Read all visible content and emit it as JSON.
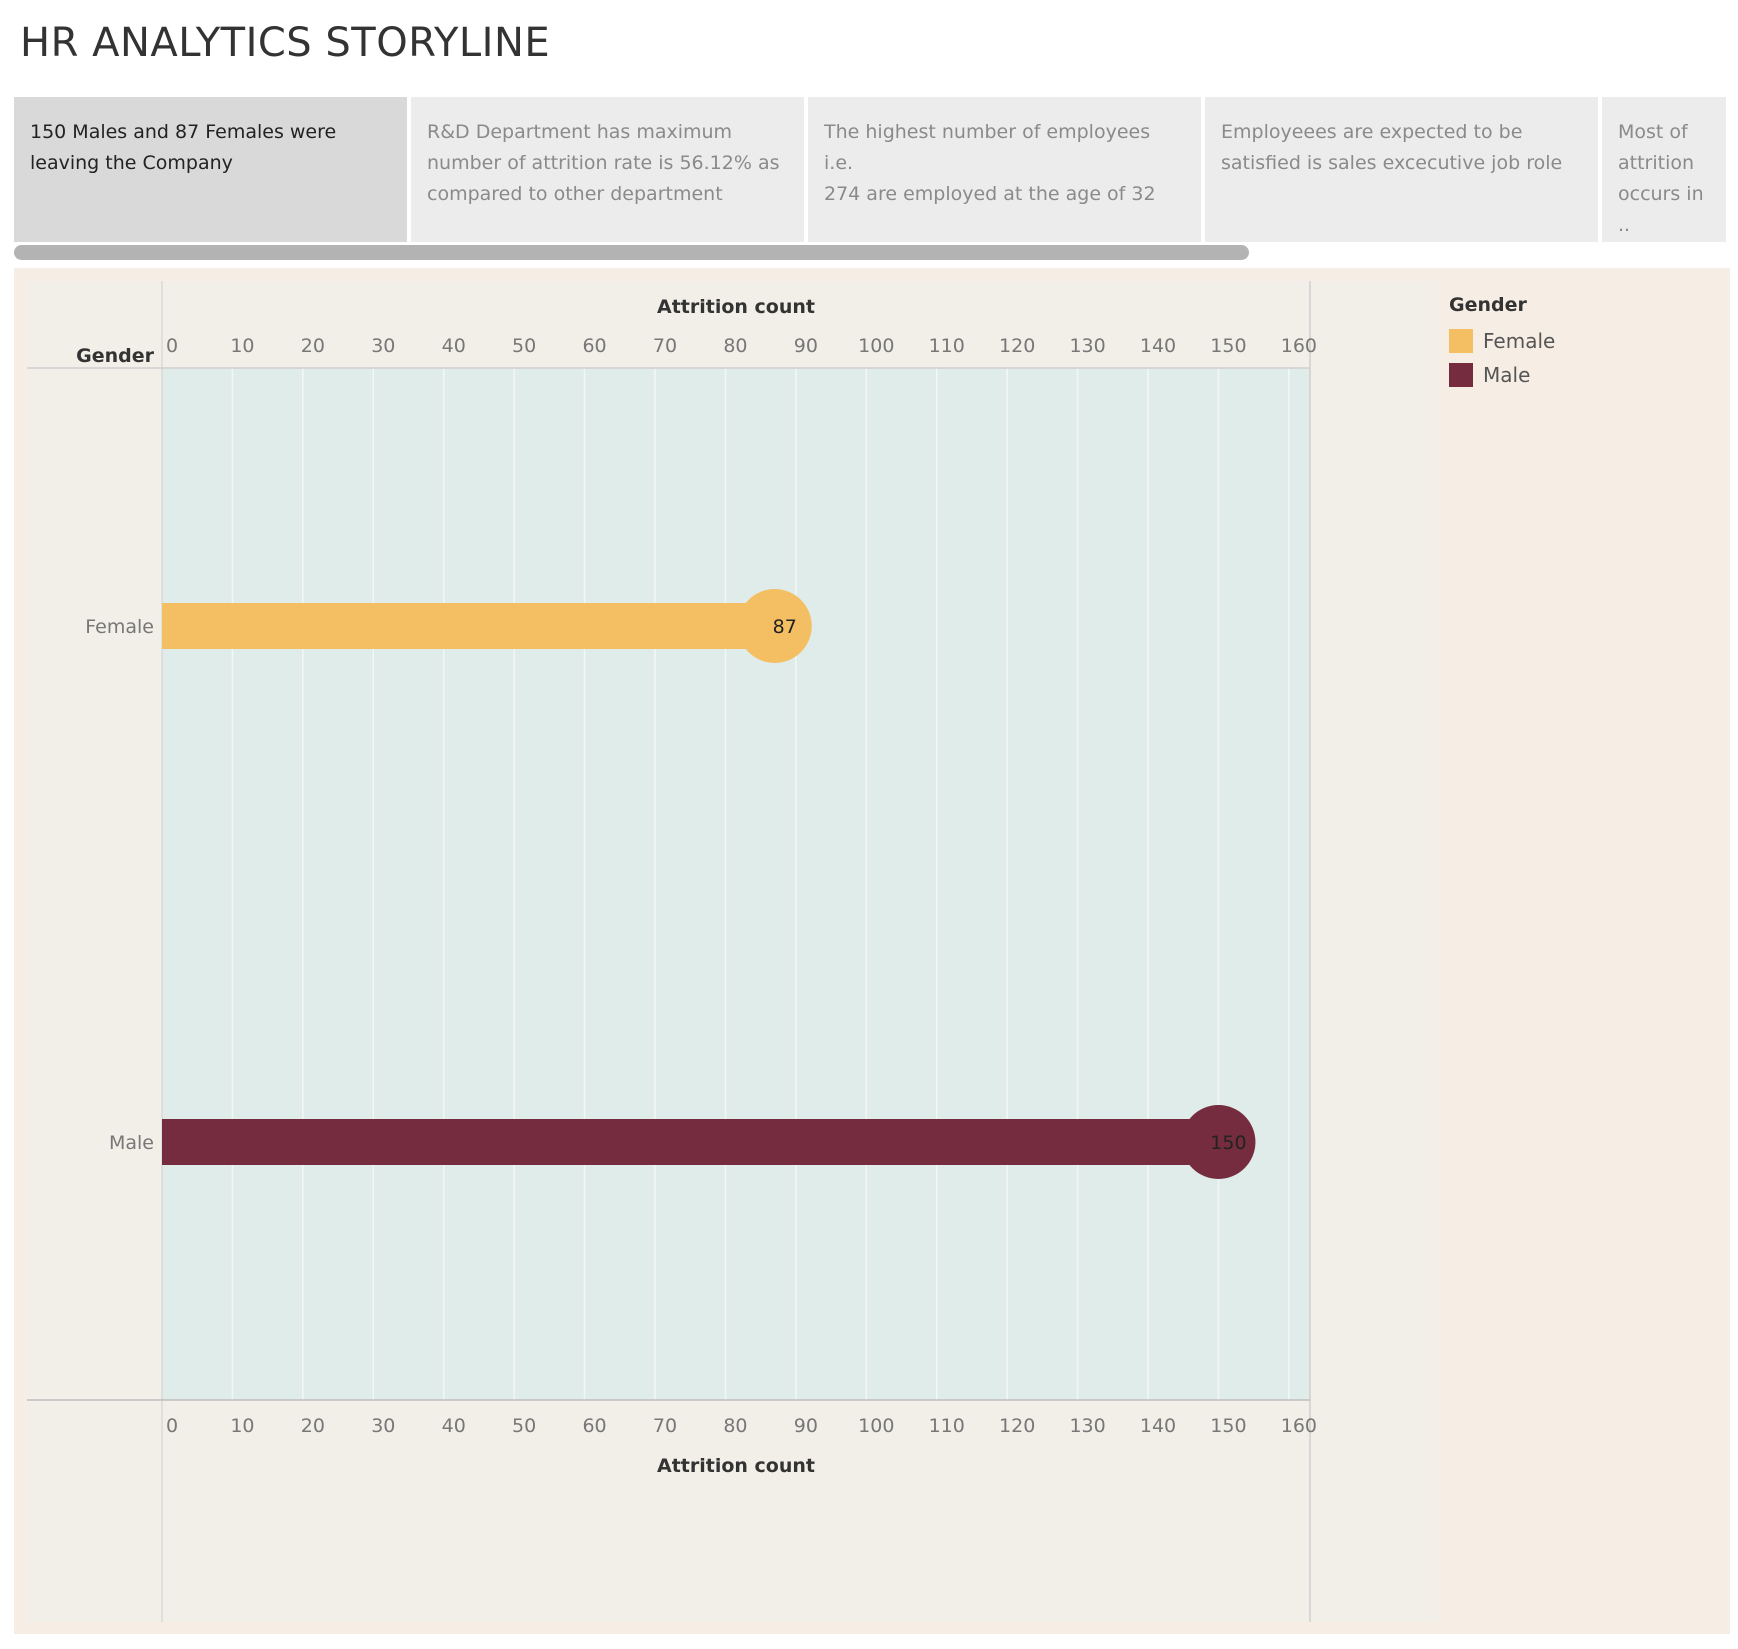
{
  "page": {
    "title": "HR ANALYTICS STORYLINE"
  },
  "story_points": [
    {
      "lines": [
        "150 Males and 87 Females were",
        "leaving the Company"
      ],
      "active": true
    },
    {
      "lines": [
        "R&D Department has maximum",
        "number of attrition rate is 56.12% as",
        "compared to other department"
      ],
      "active": false
    },
    {
      "lines": [
        "The highest number of employees i.e.",
        "274 are  employed at the age of 32"
      ],
      "active": false
    },
    {
      "lines": [
        "Employeees are expected to be",
        "satisfied is sales excecutive job role"
      ],
      "active": false
    },
    {
      "lines": [
        "Most of",
        "attrition",
        "occurs in .."
      ],
      "active": false
    }
  ],
  "legend": {
    "title": "Gender",
    "items": [
      {
        "label": "Female",
        "color": "#f4be62"
      },
      {
        "label": "Male",
        "color": "#742c3e"
      }
    ]
  },
  "chart_data": {
    "type": "bar",
    "orientation": "horizontal",
    "row_header": "Gender",
    "categories": [
      "Female",
      "Male"
    ],
    "values": [
      87,
      150
    ],
    "data_labels": [
      "87",
      "150"
    ],
    "colors": [
      "#f4be62",
      "#742c3e"
    ],
    "xlabel": "Attrition count",
    "xlim": [
      0,
      163
    ],
    "ticks": [
      0,
      10,
      20,
      30,
      40,
      50,
      60,
      70,
      80,
      90,
      100,
      110,
      120,
      130,
      140,
      150,
      160
    ],
    "tick_labels": [
      "0",
      "10",
      "20",
      "30",
      "40",
      "50",
      "60",
      "70",
      "80",
      "90",
      "100",
      "110",
      "120",
      "130",
      "140",
      "150",
      "160"
    ],
    "grid": true,
    "marker": "circle at bar end",
    "axis_position": "top and bottom",
    "plot_background": "#e0ecea"
  }
}
